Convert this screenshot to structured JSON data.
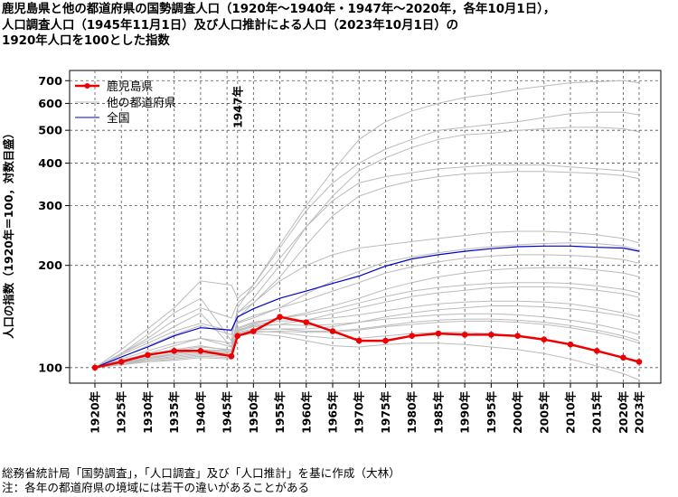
{
  "title_lines": [
    "鹿児島県と他の都道府県の国勢調査人口（1920年～1940年・1947年～2020年，各年10月1日），",
    "人口調査人口（1945年11月1日）及び人口推計による人口（2023年10月1日）の",
    "1920年人口を100とした指数"
  ],
  "footer_lines": [
    "総務省統計局「国勢調査」，「人口調査」及び「人口推計」を基に作成（大林）",
    "注：各年の都道府県の境域には若干の違いがあることがある"
  ],
  "colors": {
    "kagoshima": "#ee0000",
    "others": "#bbbbbb",
    "national": "#0000cc"
  },
  "chart_data": {
    "type": "line",
    "title": "鹿児島県と他の都道府県の国勢調査人口（1920年～1940年・1947年～2020年，各年10月1日），人口調査人口（1945年11月1日）及び人口推計による人口（2023年10月1日）の1920年人口を100とした指数",
    "xlabel": "",
    "ylabel": "人口の指数（1920年＝100，対数目盛）",
    "y_scale": "log",
    "ylim": [
      90,
      750
    ],
    "y_ticks": [
      100,
      200,
      300,
      400,
      500,
      600,
      700
    ],
    "grid": true,
    "legend_position": "top-left",
    "x_tick_labels": [
      "1920年",
      "1925年",
      "1930年",
      "1935年",
      "1940年",
      "1945年",
      "1950年",
      "1955年",
      "1960年",
      "1965年",
      "1970年",
      "1975年",
      "1980年",
      "1985年",
      "1990年",
      "1995年",
      "2000年",
      "2005年",
      "2010年",
      "2015年",
      "2020年",
      "2023年"
    ],
    "annotation": "1947年",
    "annotation_x": 1947,
    "x": [
      1920,
      1925,
      1930,
      1935,
      1940,
      1945.83,
      1947,
      1950,
      1955,
      1960,
      1965,
      1970,
      1975,
      1980,
      1985,
      1990,
      1995,
      2000,
      2005,
      2010,
      2015,
      2020,
      2023
    ],
    "series": [
      {
        "name": "鹿児島県",
        "role": "highlight",
        "values": [
          100,
          104,
          109,
          112,
          112,
          108,
          124,
          128,
          141,
          136,
          128,
          120,
          120,
          124,
          126,
          125,
          125,
          124,
          121,
          117,
          112,
          107,
          104
        ]
      },
      {
        "name": "全国",
        "role": "national",
        "values": [
          100,
          107.5,
          115,
          124,
          131,
          129,
          141,
          149,
          160,
          168,
          177,
          186,
          199,
          209,
          215,
          220,
          224,
          227,
          228,
          228,
          226,
          225,
          220
        ]
      },
      {
        "name": "他の都道府県",
        "role": "others",
        "lines": [
          [
            100,
            113,
            130,
            150,
            180,
            175,
            160,
            175,
            225,
            290,
            350,
            400,
            440,
            470,
            500,
            510,
            520,
            530,
            545,
            560,
            565,
            565,
            555
          ],
          [
            100,
            110,
            125,
            145,
            160,
            120,
            150,
            175,
            230,
            300,
            380,
            470,
            530,
            570,
            600,
            625,
            640,
            660,
            675,
            690,
            695,
            700,
            690
          ],
          [
            100,
            109,
            118,
            128,
            135,
            128,
            145,
            160,
            200,
            260,
            320,
            380,
            415,
            445,
            470,
            485,
            490,
            500,
            505,
            510,
            510,
            505,
            495
          ],
          [
            100,
            110,
            122,
            138,
            150,
            140,
            155,
            170,
            210,
            260,
            310,
            350,
            365,
            375,
            385,
            390,
            395,
            395,
            395,
            390,
            385,
            380,
            375
          ],
          [
            100,
            107,
            116,
            125,
            133,
            125,
            145,
            155,
            185,
            230,
            280,
            320,
            340,
            355,
            365,
            372,
            375,
            378,
            378,
            376,
            373,
            368,
            360
          ],
          [
            100,
            110,
            120,
            132,
            145,
            115,
            140,
            155,
            180,
            200,
            215,
            225,
            230,
            235,
            240,
            245,
            250,
            252,
            252,
            250,
            246,
            240,
            233
          ],
          [
            100,
            106,
            112,
            118,
            122,
            115,
            135,
            140,
            150,
            165,
            180,
            192,
            205,
            212,
            218,
            223,
            227,
            230,
            232,
            233,
            232,
            228,
            222
          ],
          [
            100,
            104,
            109,
            113,
            116,
            112,
            130,
            135,
            140,
            145,
            152,
            160,
            170,
            178,
            185,
            190,
            194,
            196,
            197,
            197,
            194,
            190,
            185
          ],
          [
            100,
            103,
            107,
            110,
            113,
            111,
            128,
            132,
            134,
            138,
            144,
            150,
            156,
            162,
            166,
            169,
            172,
            173,
            173,
            172,
            169,
            165,
            161
          ],
          [
            100,
            103,
            106,
            109,
            111,
            110,
            126,
            129,
            130,
            130,
            132,
            136,
            141,
            145,
            148,
            150,
            152,
            152,
            151,
            149,
            146,
            142,
            138
          ],
          [
            100,
            103,
            105,
            108,
            110,
            109,
            127,
            130,
            130,
            128,
            128,
            130,
            133,
            136,
            138,
            139,
            139,
            138,
            136,
            133,
            129,
            124,
            120
          ],
          [
            100,
            102,
            104,
            106,
            108,
            107,
            125,
            128,
            127,
            124,
            122,
            122,
            124,
            126,
            127,
            127,
            126,
            124,
            121,
            117,
            112,
            107,
            103
          ],
          [
            100,
            102,
            104,
            105,
            107,
            106,
            124,
            126,
            124,
            120,
            116,
            115,
            117,
            118,
            118,
            117,
            115,
            113,
            110,
            106,
            101,
            96,
            92
          ],
          [
            100,
            103,
            106,
            110,
            112,
            110,
            128,
            134,
            137,
            138,
            140,
            143,
            147,
            151,
            154,
            156,
            157,
            157,
            156,
            154,
            150,
            145,
            141
          ],
          [
            100,
            104,
            108,
            112,
            115,
            113,
            131,
            136,
            140,
            143,
            148,
            155,
            162,
            168,
            172,
            175,
            177,
            178,
            178,
            177,
            174,
            170,
            166
          ],
          [
            100,
            102,
            105,
            107,
            109,
            108,
            124,
            127,
            128,
            127,
            127,
            129,
            132,
            134,
            136,
            137,
            137,
            136,
            134,
            131,
            127,
            122,
            118
          ],
          [
            100,
            103,
            107,
            110,
            113,
            112,
            129,
            133,
            134,
            133,
            134,
            136,
            139,
            141,
            143,
            144,
            144,
            143,
            141,
            138,
            134,
            129,
            125
          ],
          [
            100,
            105,
            110,
            116,
            122,
            118,
            136,
            142,
            150,
            158,
            168,
            178,
            190,
            198,
            205,
            210,
            213,
            215,
            215,
            214,
            212,
            208,
            203
          ]
        ]
      }
    ]
  }
}
